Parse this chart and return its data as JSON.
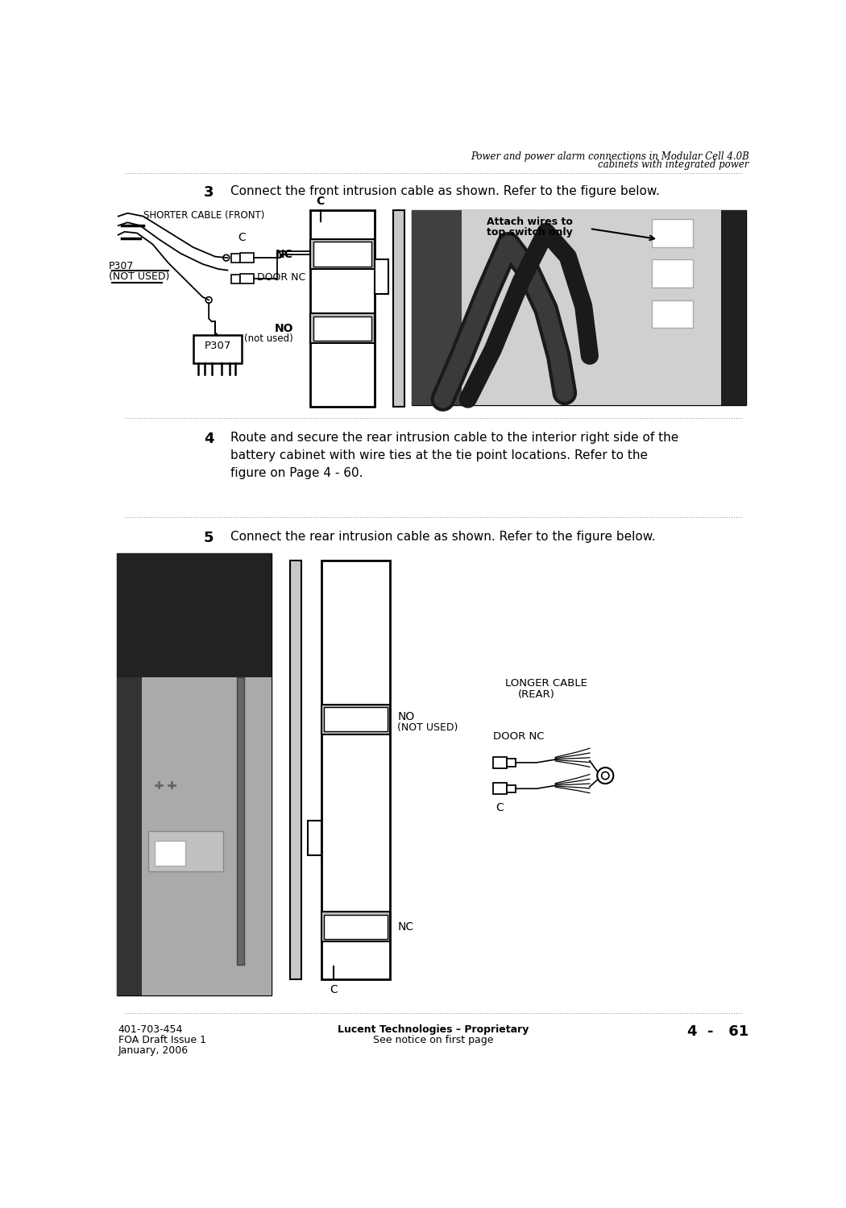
{
  "bg_color": "#ffffff",
  "header_title_line1": "Power and power alarm connections in Modular Cell 4.0B",
  "header_title_line2": "cabinets with integrated power",
  "step3_number": "3",
  "step3_text": "Connect the front intrusion cable as shown. Refer to the figure below.",
  "step4_number": "4",
  "step4_text": "Route and secure the rear intrusion cable to the interior right side of the\nbattery cabinet with wire ties at the tie point locations. Refer to the\nfigure on Page 4 - 60.",
  "step5_number": "5",
  "step5_text": "Connect the rear intrusion cable as shown. Refer to the figure below.",
  "footer_left_line1": "401-703-454",
  "footer_left_line2": "FOA Draft Issue 1",
  "footer_left_line3": "January, 2006",
  "footer_center_line1": "Lucent Technologies – Proprietary",
  "footer_center_line2": "See notice on first page",
  "footer_right": "4  -   61",
  "text_color": "#000000",
  "dotted_color": "#888888"
}
